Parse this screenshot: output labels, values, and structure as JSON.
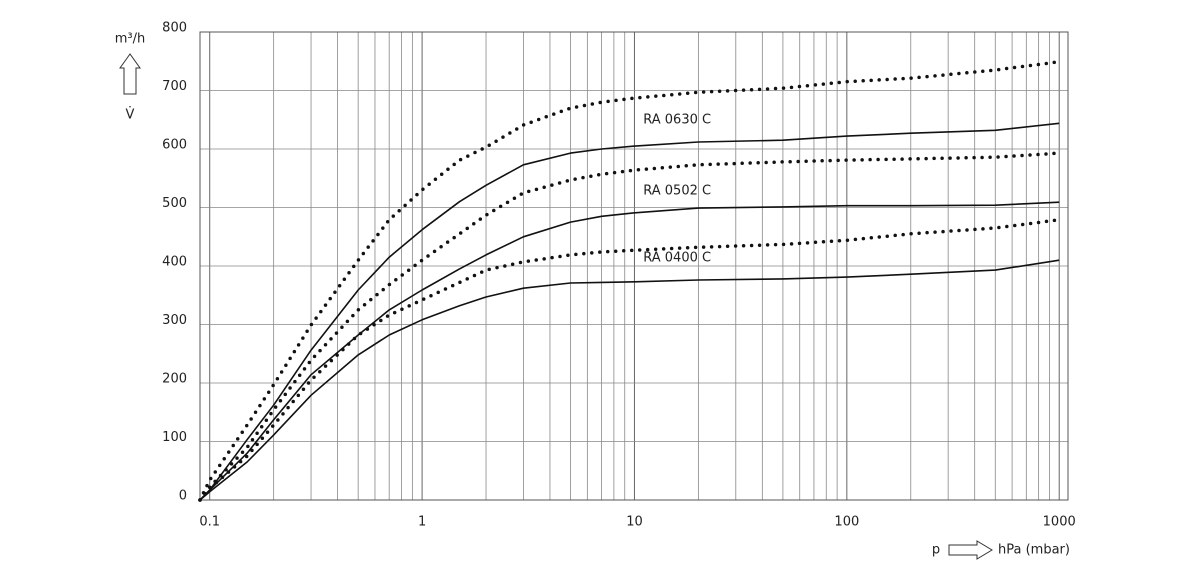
{
  "chart_data": {
    "type": "line",
    "y_label": "m³/h",
    "y_symbol": "V̇",
    "x_symbol": "p",
    "x_label": "hPa (mbar)",
    "x_scale": "log",
    "xlim": [
      0.09,
      1100
    ],
    "ylim": [
      0,
      800
    ],
    "xticks": [
      0.1,
      1,
      10,
      100,
      1000
    ],
    "x_minor_ticks": [
      0.2,
      0.3,
      0.4,
      0.5,
      0.6,
      0.7,
      0.8,
      0.9,
      2,
      3,
      4,
      5,
      6,
      7,
      8,
      9,
      20,
      30,
      40,
      50,
      60,
      70,
      80,
      90,
      200,
      300,
      400,
      500,
      600,
      700,
      800,
      900
    ],
    "yticks": [
      0,
      100,
      200,
      300,
      400,
      500,
      600,
      700,
      800
    ],
    "grid": true,
    "x": [
      0.09,
      0.1,
      0.15,
      0.2,
      0.3,
      0.5,
      0.7,
      1,
      1.5,
      2,
      3,
      5,
      7,
      10,
      20,
      50,
      100,
      200,
      500,
      1000
    ],
    "series": [
      {
        "color": "#111111",
        "style": "solid",
        "values": [
          0,
          17,
          103,
          162,
          256,
          359,
          415,
          462,
          510,
          538,
          573,
          593,
          600,
          605,
          612,
          615,
          622,
          627,
          632,
          644
        ]
      },
      {
        "color": "#111111",
        "style": "dotted",
        "values": [
          0,
          34,
          128,
          197,
          299,
          410,
          479,
          530,
          581,
          603,
          641,
          670,
          680,
          687,
          697,
          704,
          715,
          721,
          735,
          749
        ]
      },
      {
        "color": "#111111",
        "style": "solid",
        "values": [
          0,
          17,
          80,
          137,
          214,
          282,
          325,
          359,
          395,
          419,
          450,
          475,
          485,
          491,
          499,
          501,
          503,
          503,
          504,
          509
        ]
      },
      {
        "color": "#111111",
        "style": "dotted",
        "values": [
          0,
          22,
          90,
          154,
          239,
          325,
          368,
          410,
          455,
          487,
          525,
          547,
          557,
          564,
          573,
          578,
          581,
          583,
          586,
          593
        ]
      },
      {
        "color": "#111111",
        "style": "solid",
        "values": [
          0,
          14,
          65,
          111,
          179,
          248,
          282,
          308,
          332,
          347,
          362,
          371,
          372,
          373,
          376,
          378,
          381,
          386,
          393,
          410
        ]
      },
      {
        "color": "#111111",
        "style": "dotted",
        "values": [
          0,
          20,
          75,
          128,
          205,
          282,
          316,
          342,
          372,
          393,
          407,
          419,
          424,
          427,
          432,
          437,
          444,
          455,
          465,
          479
        ]
      }
    ],
    "annotations": [
      {
        "text": "RA 0630 C",
        "x": 11,
        "y": 650
      },
      {
        "text": "RA 0502 C",
        "x": 11,
        "y": 528
      },
      {
        "text": "RA 0400 C",
        "x": 11,
        "y": 414
      }
    ]
  }
}
